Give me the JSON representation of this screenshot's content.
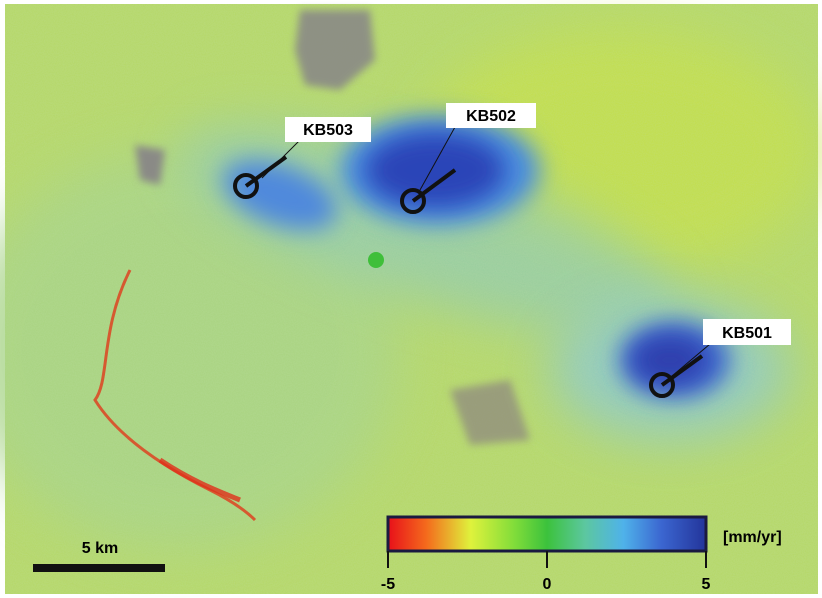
{
  "map": {
    "wells": [
      {
        "label": "KB503"
      },
      {
        "label": "KB502"
      },
      {
        "label": "KB501"
      }
    ],
    "scale_bar": {
      "label": "5 km"
    },
    "colorbar": {
      "unit": "[mm/yr]",
      "ticks": [
        -5,
        0,
        5
      ]
    }
  }
}
